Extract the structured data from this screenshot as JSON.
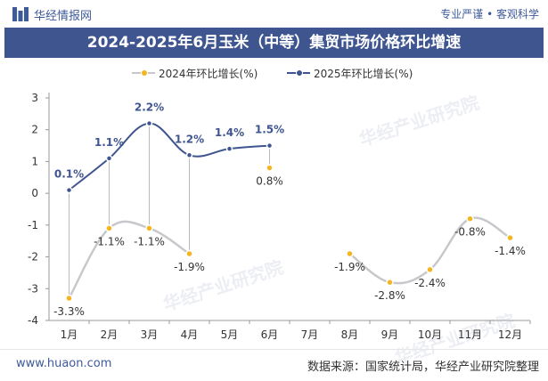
{
  "header": {
    "logo_text": "华经情报网",
    "tagline": "专业严谨 • 客观科学"
  },
  "title": "2024-2025年6月玉米（中等）集贸市场价格环比增速",
  "footer": {
    "url": "www.huaon.com",
    "source": "数据来源：国家统计局，华经产业研究院整理"
  },
  "watermark": "华经产业研究院",
  "colors": {
    "title_bg": "#3f5590",
    "series_2024": "#f5b520",
    "series_2025": "#3f5590",
    "line_2024": "#c8c8cc",
    "line_2025": "#3f5590",
    "brand": "#3d5a99"
  },
  "chart_data": {
    "type": "line",
    "categories": [
      "1月",
      "2月",
      "3月",
      "4月",
      "5月",
      "6月",
      "7月",
      "8月",
      "9月",
      "10月",
      "11月",
      "12月"
    ],
    "ylim": [
      -4,
      3
    ],
    "yticks": [
      "-4",
      "-3",
      "-2",
      "-1",
      "0",
      "1",
      "2",
      "3"
    ],
    "grid": false,
    "legend_position": "top",
    "series": [
      {
        "name": "2024年环比增长(%)",
        "values": [
          -3.3,
          -1.1,
          -1.1,
          -1.9,
          null,
          0.8,
          null,
          -1.9,
          -2.8,
          -2.4,
          -0.8,
          -1.4
        ],
        "labels": [
          "-3.3%",
          "-1.1%",
          "-1.1%",
          "-1.9%",
          "",
          "0.8%",
          "",
          "-1.9%",
          "-2.8%",
          "-2.4%",
          "-0.8%",
          "-1.4%"
        ]
      },
      {
        "name": "2025年环比增长(%)",
        "values": [
          0.1,
          1.1,
          2.2,
          1.2,
          1.4,
          1.5,
          null,
          null,
          null,
          null,
          null,
          null
        ],
        "labels": [
          "0.1%",
          "1.1%",
          "2.2%",
          "1.2%",
          "1.4%",
          "1.5%",
          "",
          "",
          "",
          "",
          "",
          ""
        ]
      }
    ]
  }
}
